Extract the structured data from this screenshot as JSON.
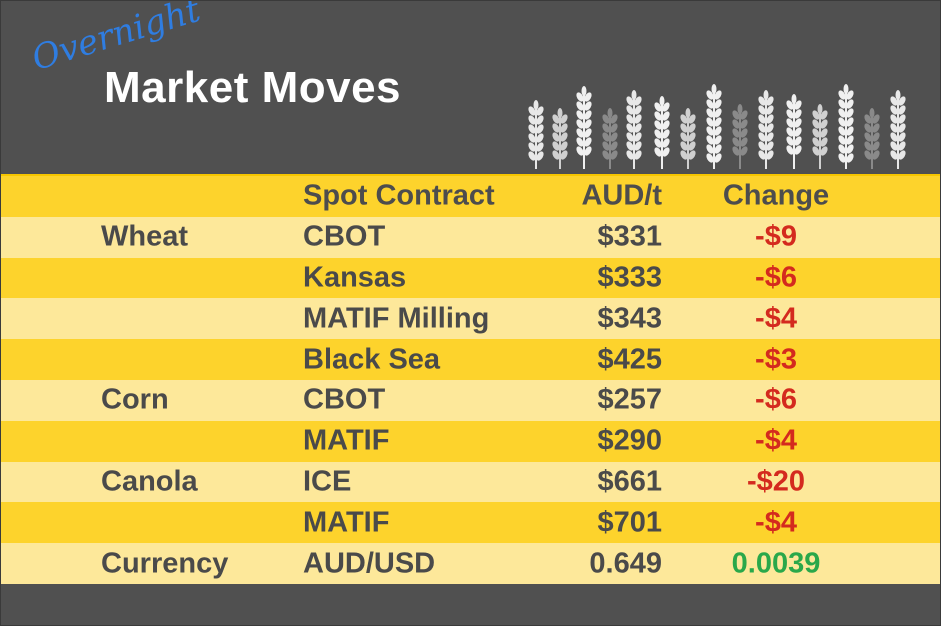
{
  "header": {
    "kicker": "Overnight",
    "title": "Market Moves"
  },
  "table": {
    "columns": [
      "Spot Contract",
      "AUD/t",
      "Change"
    ],
    "groups": [
      {
        "name": "Wheat",
        "rows": [
          [
            "CBOT",
            "$331",
            "-$9"
          ],
          [
            "Kansas",
            "$333",
            "-$6"
          ],
          [
            "MATIF Milling",
            "$343",
            "-$4"
          ],
          [
            "Black Sea",
            "$425",
            "-$3"
          ]
        ]
      },
      {
        "name": "Corn",
        "rows": [
          [
            "CBOT",
            "$257",
            "-$6"
          ],
          [
            "MATIF",
            "$290",
            "-$4"
          ]
        ]
      },
      {
        "name": "Canola",
        "rows": [
          [
            "ICE",
            "$661",
            "-$20"
          ],
          [
            "MATIF",
            "$701",
            "-$4"
          ]
        ]
      },
      {
        "name": "Currency",
        "rows": [
          [
            "AUD/USD",
            "0.649",
            "0.0039"
          ]
        ]
      }
    ],
    "change_colors": {
      "down": "#d42a1e",
      "up": "#2aa84a"
    }
  }
}
